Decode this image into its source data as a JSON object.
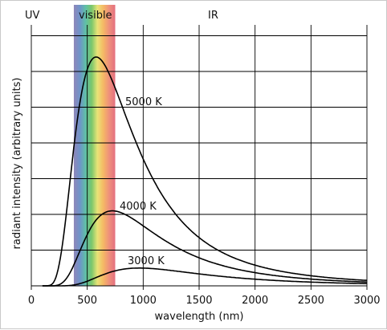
{
  "chart_data": {
    "type": "line",
    "xlabel": "wavelength (nm)",
    "ylabel": "radiant intensity (arbitrary units)",
    "xlim": [
      0,
      3000
    ],
    "ylim": [
      0,
      1
    ],
    "x_ticks": [
      0,
      500,
      1000,
      1500,
      2000,
      2500,
      3000
    ],
    "x_tick_labels": [
      "0",
      "500",
      "1000",
      "1500",
      "2000",
      "2500",
      "3000"
    ],
    "grid": true,
    "region_labels": [
      "UV",
      "visible",
      "IR"
    ],
    "visible_band": {
      "start": 380,
      "end": 750,
      "colors": [
        "#8f86b9",
        "#6f93c9",
        "#5fc0a6",
        "#79c66b",
        "#e9e377",
        "#f5b865",
        "#ee8f7c",
        "#e47080"
      ]
    },
    "series": [
      {
        "name": "5000 K",
        "temperature": 5000
      },
      {
        "name": "4000 K",
        "temperature": 4000
      },
      {
        "name": "3000 K",
        "temperature": 3000
      }
    ]
  }
}
